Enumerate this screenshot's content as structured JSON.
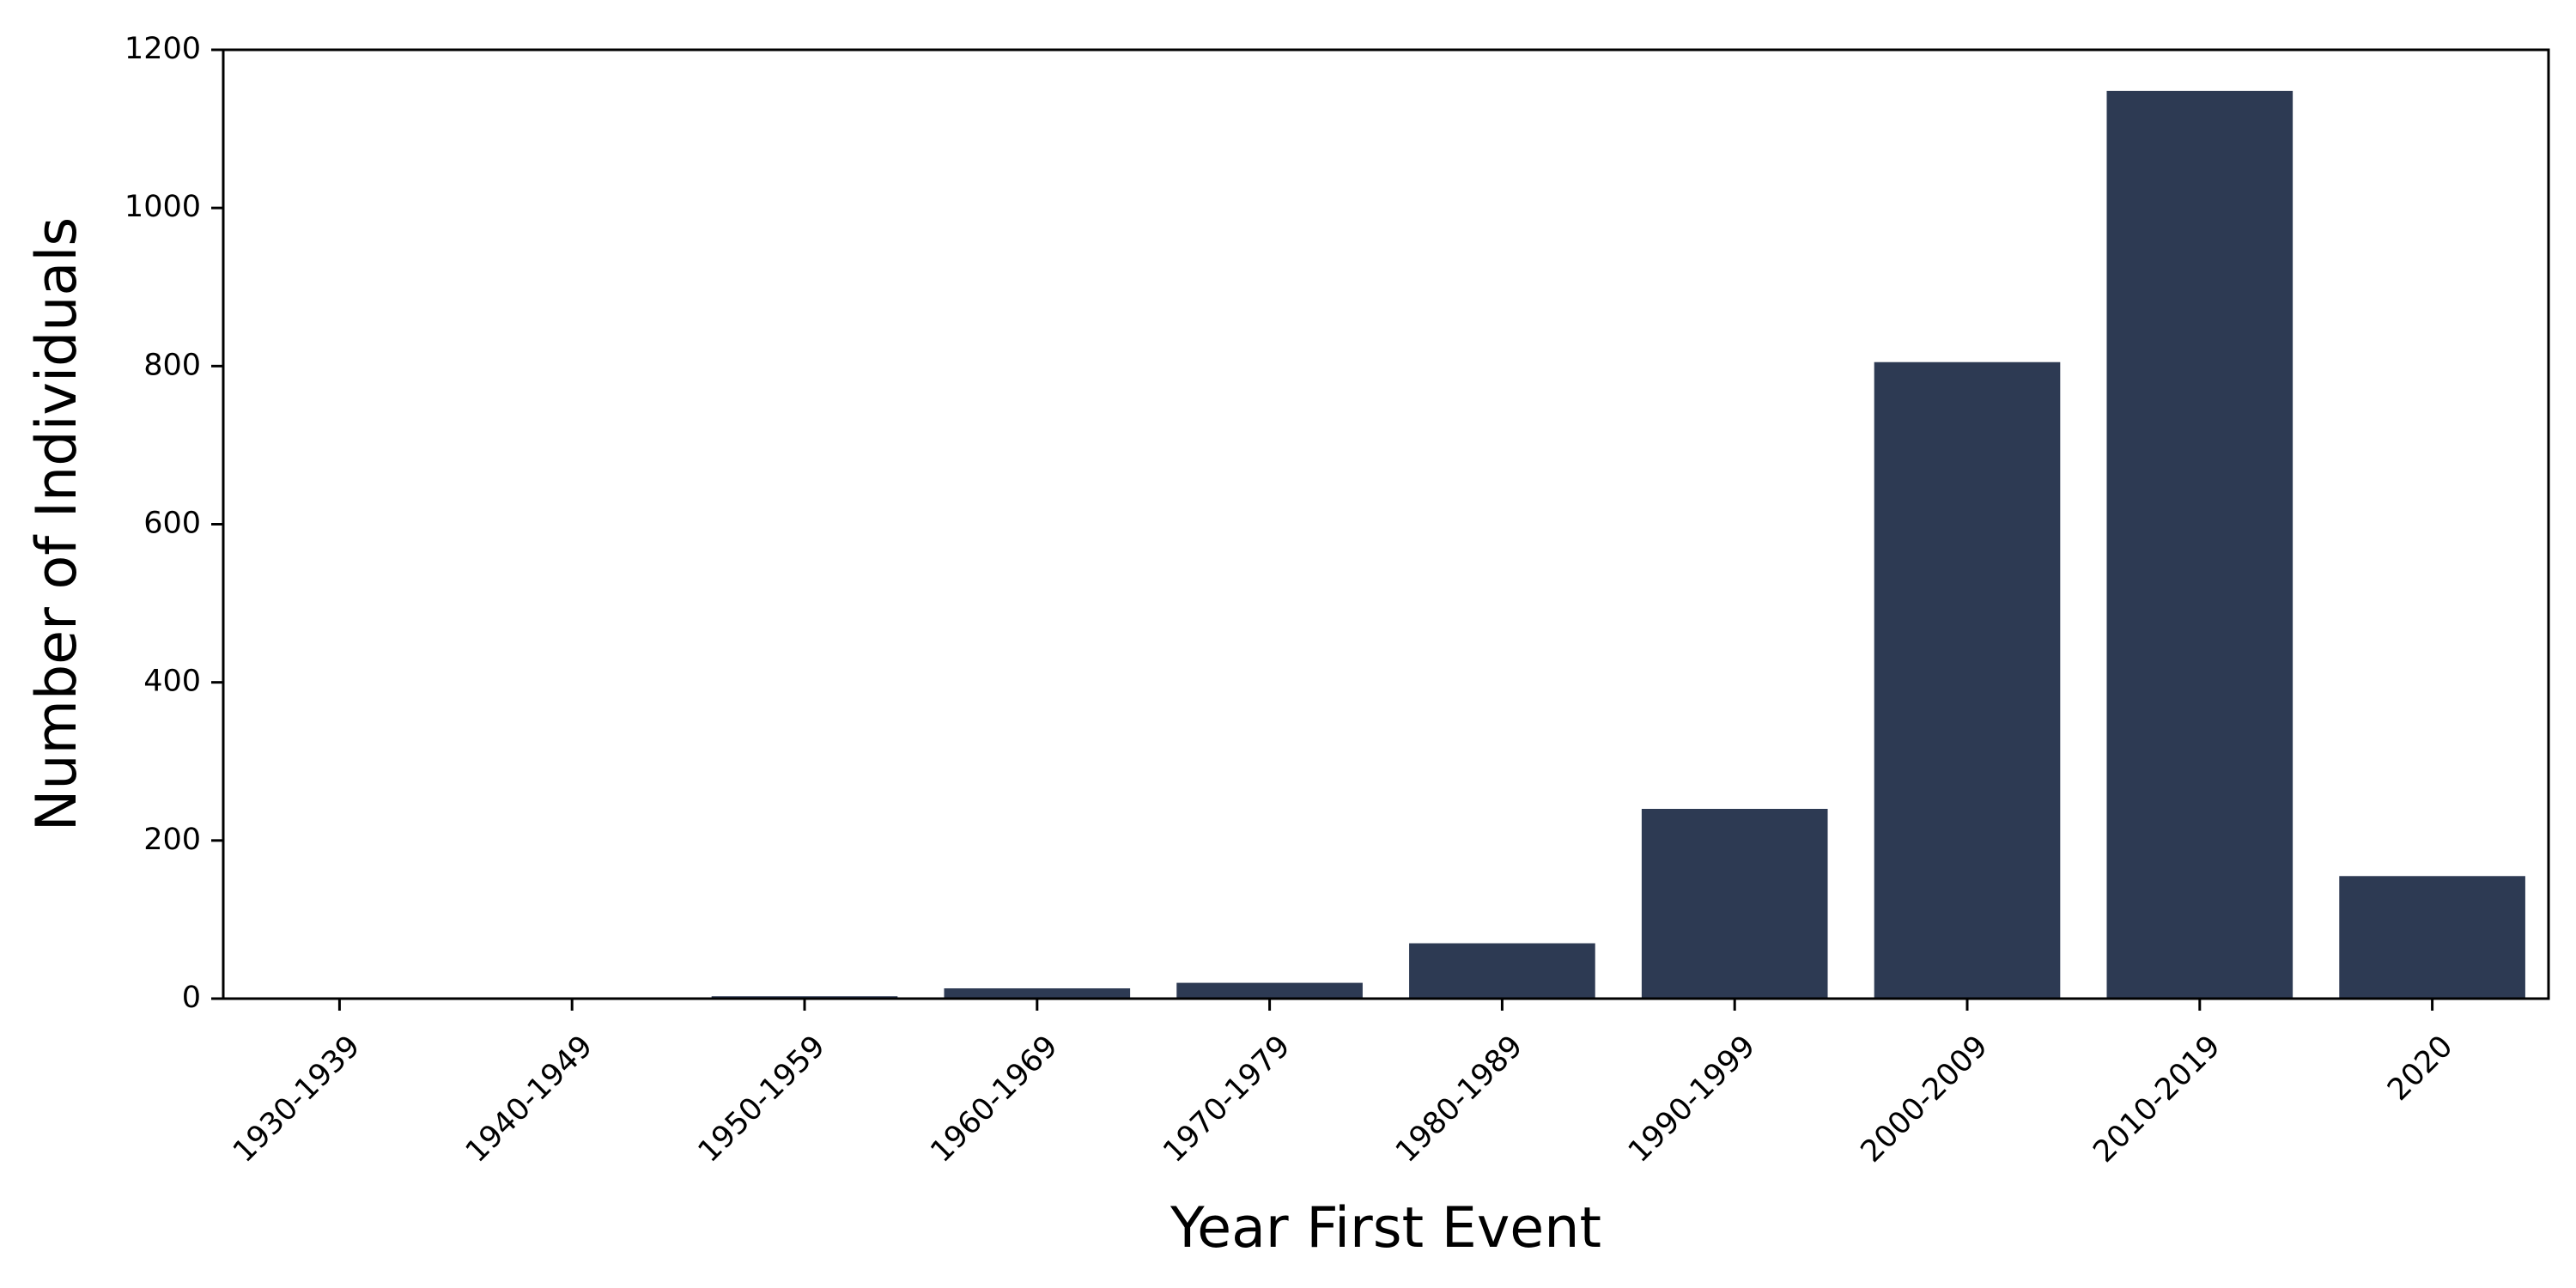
{
  "chart_data": {
    "type": "bar",
    "title": "",
    "xlabel": "Year First Event",
    "ylabel": "Number of Individuals",
    "categories": [
      "1930-1939",
      "1940-1949",
      "1950-1959",
      "1960-1969",
      "1970-1979",
      "1980-1989",
      "1990-1999",
      "2000-2009",
      "2010-2019",
      "2020"
    ],
    "values": [
      1,
      1,
      3,
      13,
      20,
      70,
      240,
      805,
      1148,
      155
    ],
    "ylim": [
      0,
      1200
    ],
    "yticks": [
      "0",
      "200",
      "400",
      "600",
      "800",
      "1000",
      "1200"
    ],
    "bar_color": "#2d3a53",
    "grid": false,
    "legend": "none"
  }
}
